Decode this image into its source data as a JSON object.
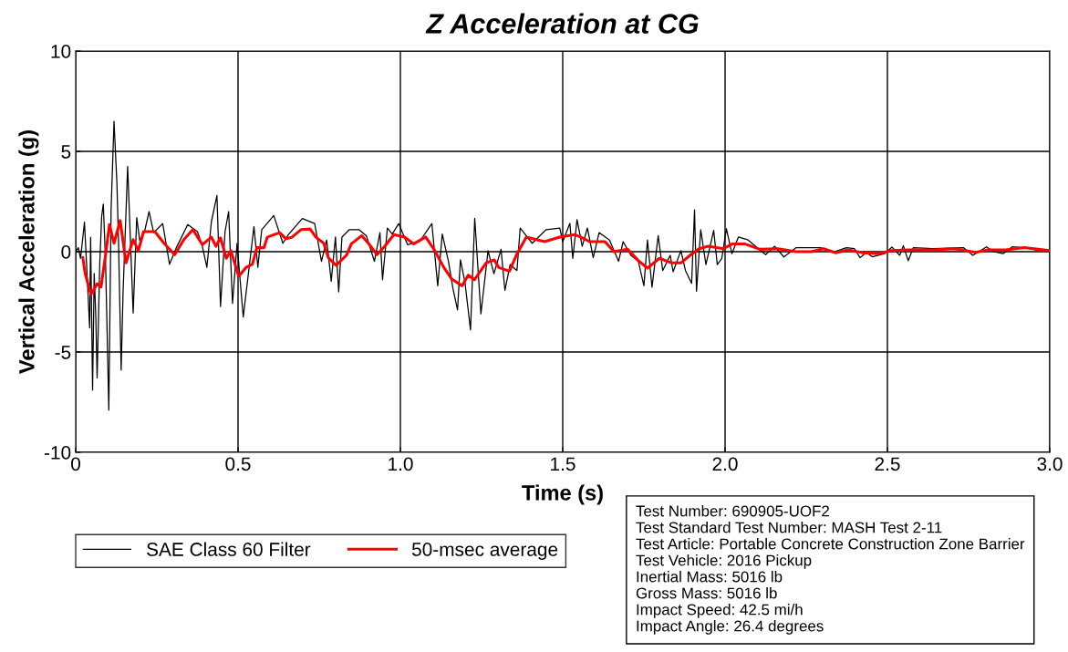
{
  "chart_data": {
    "type": "line",
    "title": "Z Acceleration at CG",
    "xlabel": "Time (s)",
    "ylabel": "Vertical Acceleration (g)",
    "xlim": [
      0,
      3
    ],
    "xticks": [
      0,
      0.5,
      {
        "value": 1,
        "label": "1.0"
      },
      1.5,
      {
        "value": 2,
        "label": "2.0"
      },
      2.5,
      {
        "value": 3,
        "label": "3.0"
      }
    ],
    "ylim": [
      -10,
      10
    ],
    "yticks": [
      -10,
      -5,
      0,
      5,
      10
    ],
    "grid": true,
    "legend": "bottom left",
    "marker": "none",
    "line_style": "solid",
    "series": [
      {
        "name": "SAE Class 60 Filter",
        "color": "#000000",
        "x": [
          0,
          0.008,
          0.015,
          0.027,
          0.034,
          0.043,
          0.046,
          0.052,
          0.057,
          0.062,
          0.066,
          0.074,
          0.08,
          0.085,
          0.092,
          0.102,
          0.109,
          0.118,
          0.127,
          0.132,
          0.14,
          0.146,
          0.16,
          0.177,
          0.188,
          0.197,
          0.212,
          0.226,
          0.24,
          0.268,
          0.289,
          0.31,
          0.345,
          0.375,
          0.39,
          0.404,
          0.418,
          0.435,
          0.446,
          0.46,
          0.471,
          0.483,
          0.497,
          0.516,
          0.549,
          0.561,
          0.573,
          0.61,
          0.638,
          0.656,
          0.698,
          0.736,
          0.757,
          0.773,
          0.787,
          0.8,
          0.81,
          0.82,
          0.843,
          0.872,
          0.895,
          0.92,
          0.937,
          0.945,
          0.96,
          0.975,
          0.995,
          1.022,
          1.059,
          1.097,
          1.115,
          1.129,
          1.148,
          1.162,
          1.176,
          1.185,
          1.199,
          1.216,
          1.229,
          1.248,
          1.27,
          1.288,
          1.31,
          1.322,
          1.338,
          1.359,
          1.369,
          1.406,
          1.449,
          1.491,
          1.5,
          1.522,
          1.531,
          1.544,
          1.56,
          1.576,
          1.594,
          1.612,
          1.644,
          1.672,
          1.686,
          1.71,
          1.733,
          1.75,
          1.761,
          1.775,
          1.794,
          1.808,
          1.831,
          1.84,
          1.864,
          1.878,
          1.897,
          1.906,
          1.912,
          1.925,
          1.941,
          1.965,
          1.976,
          1.99,
          2.004,
          2.021,
          2.041,
          2.069,
          2.125,
          2.153,
          2.181,
          2.219,
          2.256,
          2.294,
          2.332,
          2.374,
          2.398,
          2.416,
          2.435,
          2.454,
          2.491,
          2.514,
          2.538,
          2.549,
          2.564,
          2.58,
          2.641,
          2.734,
          2.763,
          2.805,
          2.828,
          2.856,
          2.884,
          2.922,
          2.959,
          3.0
        ],
        "values": [
          0,
          0.2,
          -0.33,
          1.47,
          -0.78,
          -3.8,
          0.72,
          -6.9,
          -1.08,
          -3.3,
          -6.3,
          -0.63,
          1.77,
          2.37,
          -0.48,
          -7.9,
          2.07,
          6.5,
          3.4,
          0.42,
          -5.9,
          -1.98,
          4.25,
          -3.06,
          1.7,
          0.57,
          1.0,
          2.0,
          0.95,
          1.4,
          -0.63,
          0.2,
          1.35,
          1.0,
          0.27,
          -0.78,
          1.5,
          2.8,
          -2.73,
          1.0,
          2.0,
          -2.58,
          0.42,
          -3.26,
          1.25,
          -0.78,
          1.1,
          1.8,
          0.42,
          0.87,
          1.65,
          1.4,
          -0.48,
          0.58,
          -1.47,
          0.73,
          -2.0,
          0.73,
          1.1,
          1.1,
          0.8,
          -0.48,
          0.95,
          -1.4,
          1.18,
          0.88,
          1.4,
          0.35,
          0.5,
          1.4,
          -1.7,
          0.88,
          -0.48,
          -1.85,
          -2.9,
          -0.4,
          -1.55,
          -3.9,
          1.67,
          -3.1,
          0.05,
          -1.1,
          0.12,
          -1.93,
          -0.64,
          -0.94,
          1.18,
          0.42,
          1.1,
          1.18,
          0.5,
          1.41,
          -0.33,
          1.6,
          0.27,
          1.18,
          -0.3,
          0.95,
          0.58,
          -0.48,
          0.5,
          -0.18,
          -0.48,
          -1.7,
          0.58,
          -1.77,
          0.8,
          -0.94,
          -0.18,
          -1.0,
          0.05,
          -0.94,
          -1.58,
          2.09,
          -1.97,
          1.1,
          -0.64,
          1.06,
          -0.64,
          -0.33,
          1.15,
          -0.1,
          0.73,
          0.6,
          -0.15,
          0.27,
          -0.26,
          0.2,
          0.2,
          0.2,
          -0.03,
          0.2,
          0.15,
          -0.3,
          -0.03,
          -0.26,
          -0.1,
          0.23,
          -0.18,
          0.3,
          -0.45,
          0.2,
          0.15,
          0.2,
          -0.18,
          0.24,
          0,
          -0.1,
          0.24,
          0.2,
          0.09,
          0.05
        ]
      },
      {
        "name": "50-msec average",
        "color": "#ff0000",
        "x": [
          0.022,
          0.029,
          0.047,
          0.066,
          0.078,
          0.093,
          0.104,
          0.118,
          0.137,
          0.155,
          0.177,
          0.193,
          0.209,
          0.244,
          0.272,
          0.305,
          0.333,
          0.361,
          0.39,
          0.418,
          0.432,
          0.446,
          0.464,
          0.478,
          0.502,
          0.525,
          0.544,
          0.558,
          0.58,
          0.59,
          0.628,
          0.647,
          0.666,
          0.694,
          0.722,
          0.74,
          0.764,
          0.778,
          0.802,
          0.834,
          0.849,
          0.881,
          0.905,
          0.928,
          0.952,
          0.98,
          1.013,
          1.041,
          1.078,
          1.106,
          1.134,
          1.158,
          1.19,
          1.209,
          1.228,
          1.264,
          1.289,
          1.303,
          1.336,
          1.359,
          1.388,
          1.444,
          1.491,
          1.537,
          1.555,
          1.583,
          1.63,
          1.658,
          1.7,
          1.733,
          1.761,
          1.798,
          1.836,
          1.864,
          1.892,
          1.92,
          1.948,
          1.995,
          2.023,
          2.06,
          2.107,
          2.163,
          2.219,
          2.266,
          2.303,
          2.341,
          2.378,
          2.425,
          2.472,
          2.51,
          2.566,
          2.641,
          2.706,
          2.772,
          2.809,
          2.865,
          2.922,
          3.0
        ],
        "values": [
          -0.3,
          -1.08,
          -2.13,
          -1.6,
          -1.76,
          -0.03,
          1.35,
          0.42,
          1.55,
          -0.56,
          0.6,
          0.05,
          1.0,
          1.0,
          0.42,
          -0.15,
          0.6,
          1.1,
          0.35,
          0.72,
          0.27,
          0.69,
          -0.33,
          0.05,
          -1.23,
          -0.78,
          -0.63,
          0.2,
          0.2,
          0.72,
          0.95,
          0.65,
          0.72,
          1.1,
          1.13,
          0.72,
          0.42,
          -0.3,
          -0.68,
          -0.18,
          0.39,
          0.8,
          0.35,
          -0.15,
          0.27,
          0.85,
          0.73,
          0.39,
          0.73,
          0.05,
          -0.79,
          -1.36,
          -1.7,
          -1.17,
          -1.4,
          -0.56,
          -0.41,
          -0.79,
          -0.97,
          -0.11,
          0.73,
          0.5,
          0.73,
          0.85,
          0.73,
          0.5,
          0.5,
          0,
          0.12,
          -0.45,
          -0.82,
          -0.33,
          -0.56,
          -0.56,
          -0.18,
          0.15,
          0.27,
          0.15,
          0.39,
          0.39,
          0.12,
          0.15,
          0,
          0,
          0.15,
          -0.06,
          0.09,
          -0.06,
          -0.1,
          0.05,
          0.09,
          0.09,
          0.15,
          -0.03,
          0.09,
          0.09,
          0.2,
          0.05
        ]
      }
    ],
    "annotations": [
      "Test Number: 690905-UOF2",
      "Test Standard Test Number: MASH Test 2-11",
      "Test Article: Portable Concrete Construction Zone Barrier",
      "Test Vehicle: 2016 Pickup",
      "Inertial Mass: 5016 lb",
      "Gross Mass: 5016 lb",
      "Impact Speed: 42.5 mi/h",
      "Impact Angle: 26.4 degrees"
    ]
  }
}
